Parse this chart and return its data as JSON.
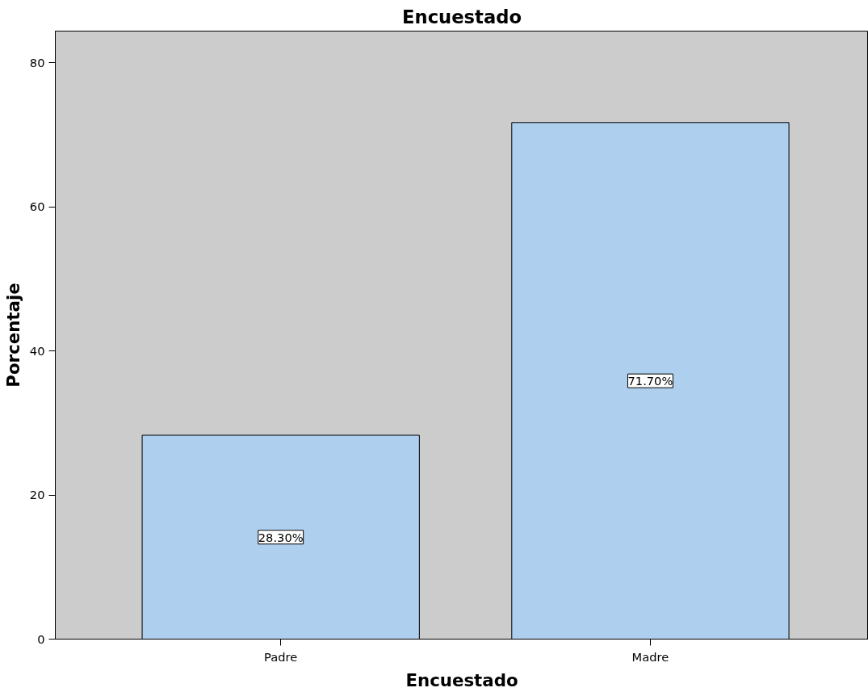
{
  "chart_data": {
    "type": "bar",
    "title": "Encuestado",
    "xlabel": "Encuestado",
    "ylabel": "Porcentaje",
    "categories": [
      "Padre",
      "Madre"
    ],
    "values": [
      28.3,
      71.7
    ],
    "value_labels": [
      "28.30%",
      "71.70%"
    ],
    "color": "#aecfee",
    "ylim": [
      0,
      84.4
    ],
    "yticks": [
      0,
      20,
      40,
      60,
      80
    ],
    "grid": false
  }
}
